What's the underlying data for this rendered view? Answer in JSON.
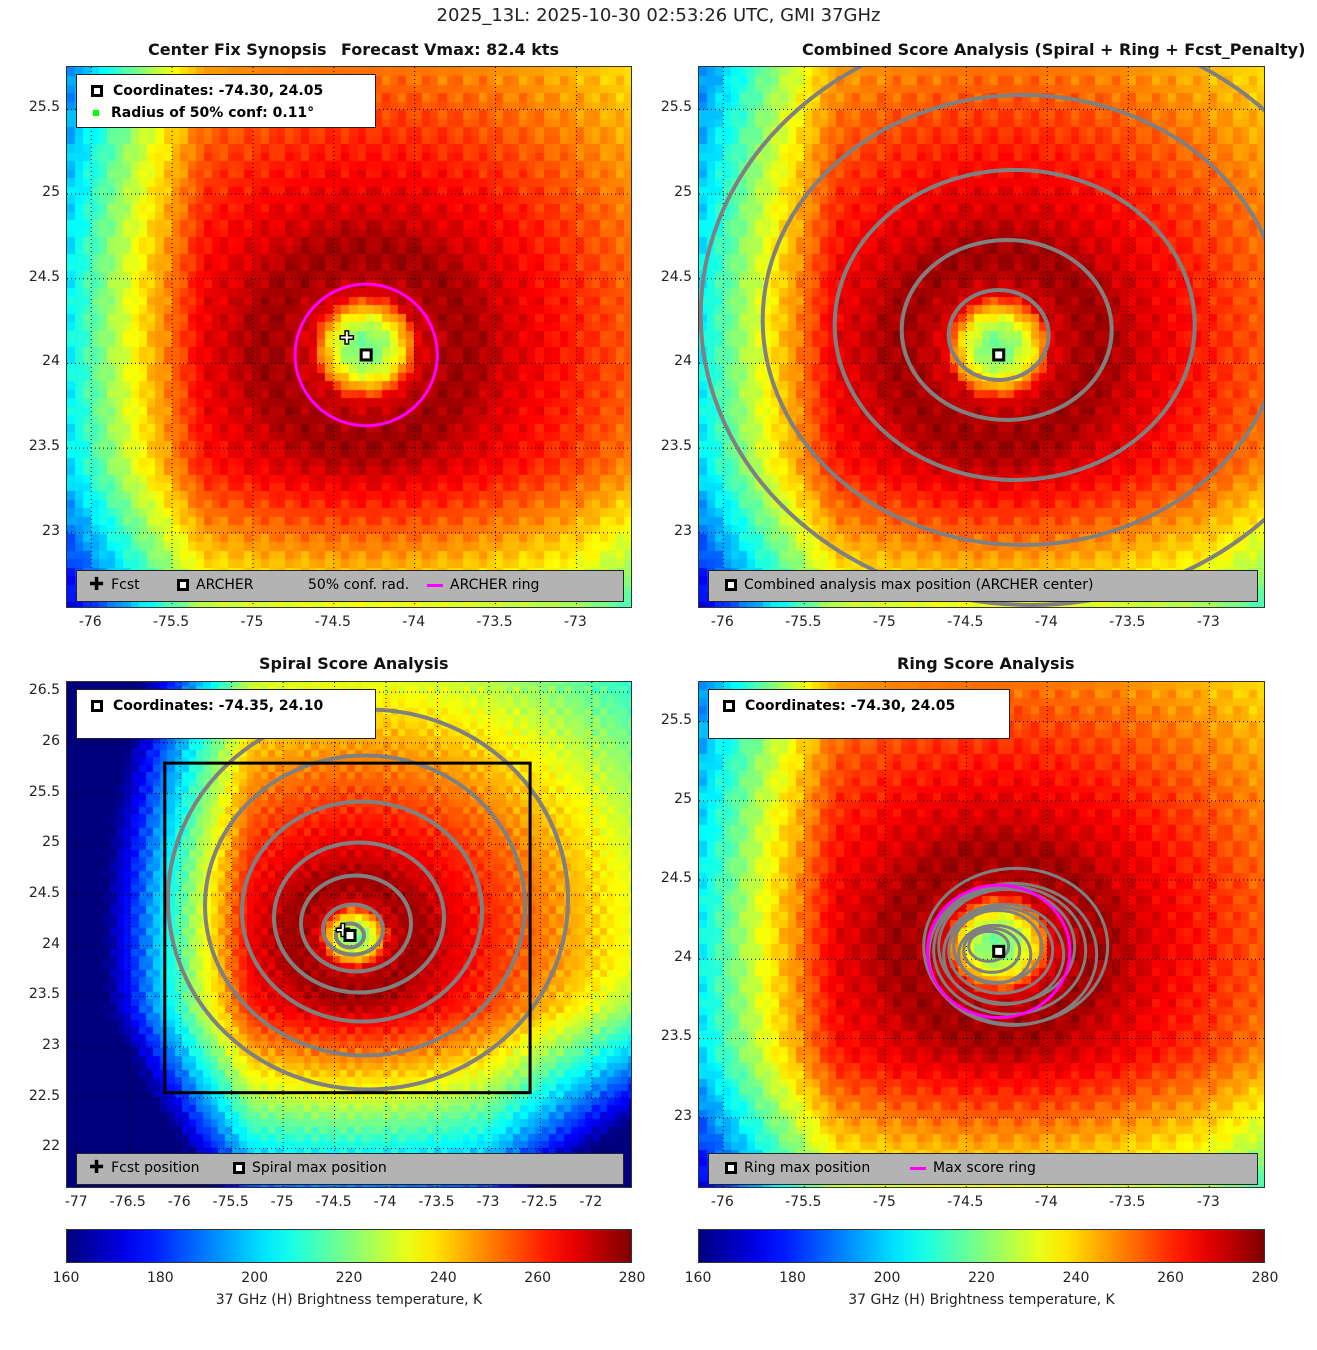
{
  "suptitle": "2025_13L: 2025-10-30 02:53:26 UTC, GMI 37GHz",
  "panels": [
    {
      "title_left": "Center Fix Synopsis",
      "title_right": "Forecast Vmax: 82.4 kts",
      "info": [
        "Coordinates: -74.30, 24.05",
        "Radius of 50% conf: 0.11°"
      ],
      "legend": [
        "Fcst",
        "ARCHER",
        "50% conf. rad.",
        "ARCHER ring"
      ],
      "xticks": [
        "-76",
        "-75.5",
        "-75",
        "-74.5",
        "-74",
        "-73.5",
        "-73"
      ],
      "yticks": [
        "25.5",
        "25",
        "24.5",
        "24",
        "23.5",
        "23"
      ]
    },
    {
      "title": "Combined Score Analysis (Spiral + Ring + Fcst_Penalty)",
      "legend": [
        "Combined analysis max position (ARCHER center)"
      ],
      "xticks": [
        "-76",
        "-75.5",
        "-75",
        "-74.5",
        "-74",
        "-73.5",
        "-73"
      ],
      "yticks": [
        "25.5",
        "25",
        "24.5",
        "24",
        "23.5",
        "23"
      ]
    },
    {
      "title": "Spiral Score Analysis",
      "info": [
        "Coordinates: -74.35, 24.10"
      ],
      "legend": [
        "Fcst position",
        "Spiral max position"
      ],
      "xticks": [
        "-77",
        "-76.5",
        "-76",
        "-75.5",
        "-75",
        "-74.5",
        "-74",
        "-73.5",
        "-73",
        "-72.5",
        "-72"
      ],
      "yticks": [
        "26.5",
        "26",
        "25.5",
        "25",
        "24.5",
        "24",
        "23.5",
        "23",
        "22.5",
        "22"
      ]
    },
    {
      "title": "Ring Score Analysis",
      "info": [
        "Coordinates: -74.30, 24.05"
      ],
      "legend": [
        "Ring max position",
        "Max score ring"
      ],
      "xticks": [
        "-76",
        "-75.5",
        "-75",
        "-74.5",
        "-74",
        "-73.5",
        "-73"
      ],
      "yticks": [
        "25.5",
        "25",
        "24.5",
        "24",
        "23.5",
        "23"
      ]
    }
  ],
  "colorbar": {
    "ticks": [
      "160",
      "180",
      "200",
      "220",
      "240",
      "260",
      "280"
    ],
    "label": "37 GHz (H) Brightness temperature, K",
    "range": [
      160,
      280
    ]
  },
  "chart_data": {
    "type": "heatmap",
    "variable": "37 GHz (H) Brightness temperature, K",
    "colormap": "jet",
    "clim": [
      160,
      280
    ],
    "archer_center": [
      -74.3,
      24.05
    ],
    "spiral_center": [
      -74.35,
      24.1
    ],
    "fcst_position": [
      -74.42,
      24.15
    ],
    "conf_radius_deg": 0.11,
    "archer_ring_radius_deg": 0.44,
    "axes": [
      {
        "xlim": [
          -76.15,
          -72.65
        ],
        "ylim": [
          22.55,
          25.75
        ]
      },
      {
        "xlim": [
          -76.15,
          -72.65
        ],
        "ylim": [
          22.55,
          25.75
        ]
      },
      {
        "xlim": [
          -77.1,
          -71.6
        ],
        "ylim": [
          21.6,
          26.6
        ]
      },
      {
        "xlim": [
          -76.15,
          -72.65
        ],
        "ylim": [
          22.55,
          25.75
        ]
      }
    ]
  },
  "colors": {
    "ring": "#ff00ff",
    "contour": "#808080",
    "legend_bg": "#b3b3b3"
  }
}
